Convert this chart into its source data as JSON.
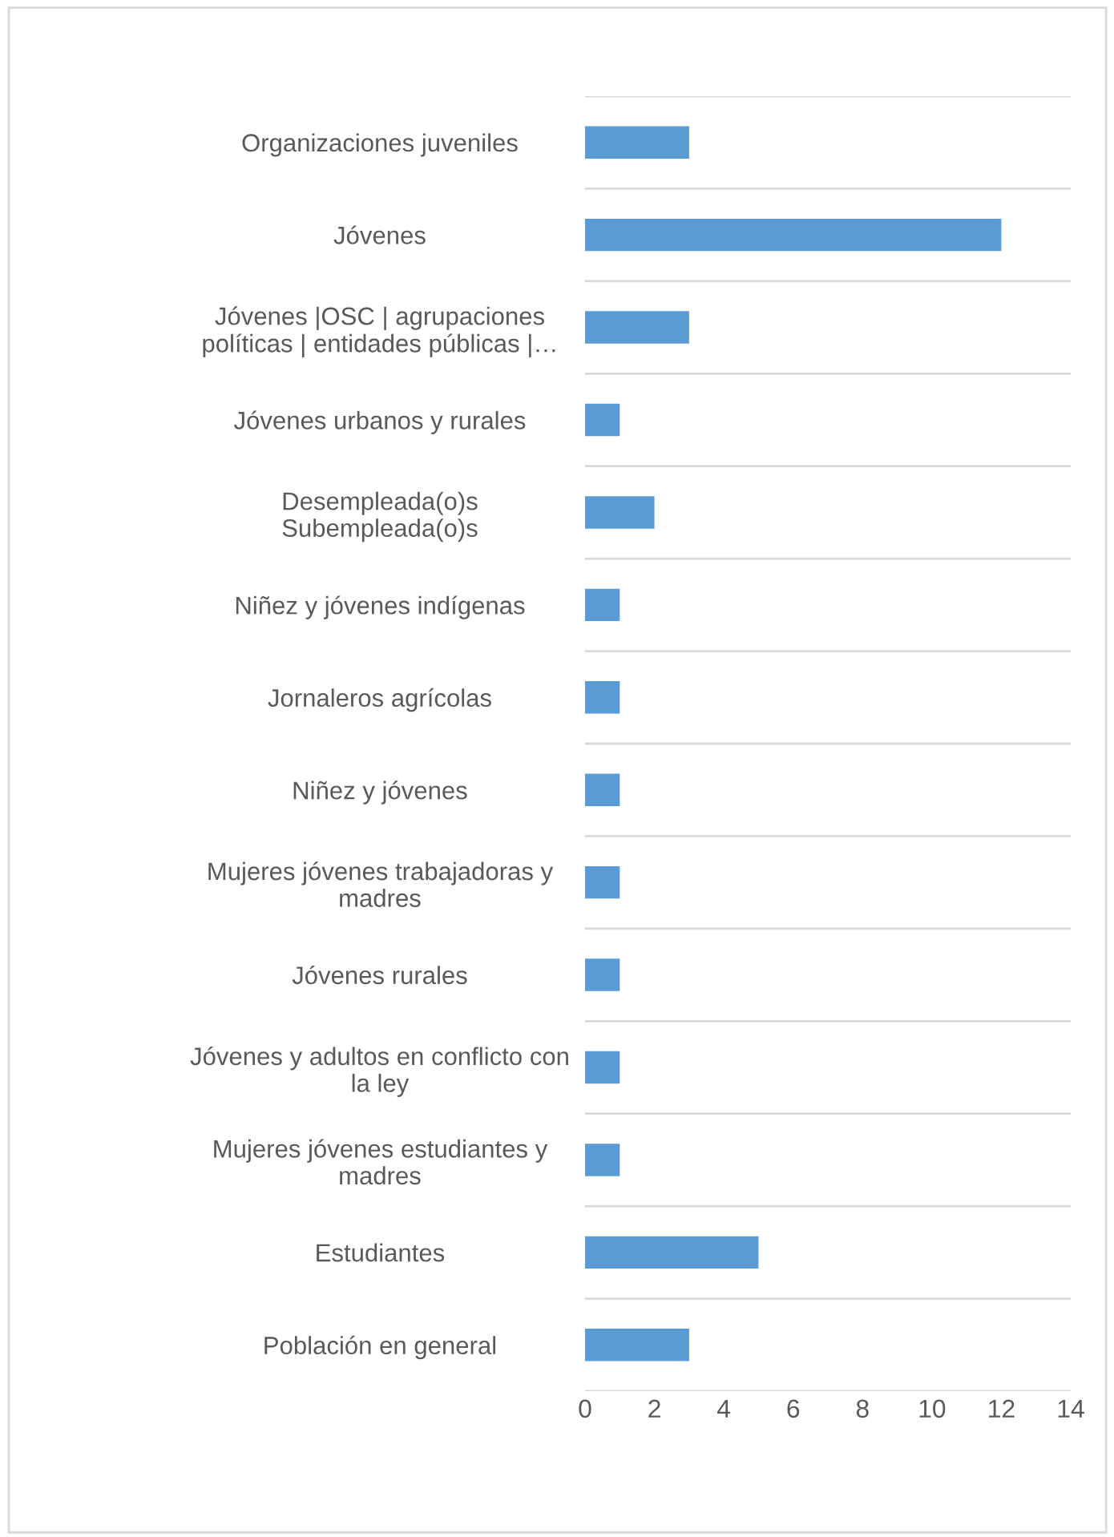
{
  "chart_data": {
    "type": "bar",
    "orientation": "horizontal",
    "categories": [
      "Organizaciones juveniles",
      "Jóvenes",
      "Jóvenes |OSC | agrupaciones\npolíticas | entidades públicas |…",
      "Jóvenes urbanos y rurales",
      "Desempleada(o)s\nSubempleada(o)s",
      "Niñez y jóvenes indígenas",
      "Jornaleros agrícolas",
      "Niñez y jóvenes",
      "Mujeres jóvenes trabajadoras y\nmadres",
      "Jóvenes rurales",
      "Jóvenes y adultos en conflicto con\nla ley",
      "Mujeres jóvenes estudiantes y\nmadres",
      "Estudiantes",
      "Población en general"
    ],
    "values": [
      3,
      12,
      3,
      1,
      2,
      1,
      1,
      1,
      1,
      1,
      1,
      1,
      5,
      3
    ],
    "color": "#5b9bd5",
    "xlim": [
      0,
      14
    ],
    "xticks": [
      0,
      2,
      4,
      6,
      8,
      10,
      12,
      14
    ],
    "grid": "y"
  }
}
